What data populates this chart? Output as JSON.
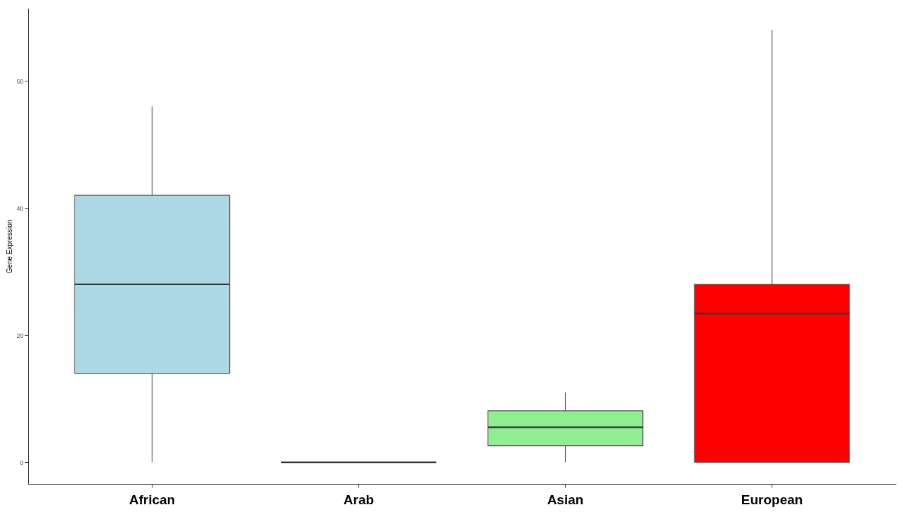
{
  "chart_data": {
    "type": "box",
    "ylabel": "Gene Expression",
    "categories": [
      "African",
      "Arab",
      "Asian",
      "European"
    ],
    "boxes": [
      {
        "low": 0,
        "q1": 14,
        "median": 28,
        "q3": 42,
        "high": 56
      },
      {
        "low": 0,
        "q1": 0,
        "median": 0,
        "q3": 0,
        "high": 0
      },
      {
        "low": 0,
        "q1": 2.6,
        "median": 5.5,
        "q3": 8.1,
        "high": 11
      },
      {
        "low": 0,
        "q1": 0,
        "median": 23.4,
        "q3": 28,
        "high": 68
      }
    ],
    "colors": [
      "#add8e6",
      null,
      "#90ee90",
      "#ff0000"
    ],
    "ylim": [
      -3.4,
      71.4
    ],
    "yticks": [
      0,
      20,
      40,
      60
    ],
    "grid": false
  }
}
